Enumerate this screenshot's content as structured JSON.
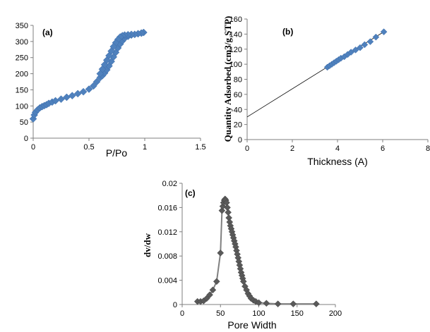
{
  "colors": {
    "blue_marker": "#4f81bd",
    "gray_marker": "#595959",
    "axis": "#7f7f7f",
    "fit_line": "#000000"
  },
  "chart_data": [
    {
      "type": "scatter",
      "panel_label": "(a)",
      "xlabel": "P/Po",
      "ylabel": "",
      "xlim": [
        0,
        1.5
      ],
      "ylim": [
        0,
        350
      ],
      "xticks": [
        "0",
        "0.5",
        "1",
        "1.5"
      ],
      "yticks": [
        "0",
        "50",
        "100",
        "150",
        "200",
        "250",
        "300",
        "350"
      ],
      "series": [
        {
          "marker": "diamond",
          "x": [
            0.0,
            0.01,
            0.02,
            0.04,
            0.06,
            0.08,
            0.1,
            0.12,
            0.14,
            0.17,
            0.2,
            0.25,
            0.3,
            0.35,
            0.4,
            0.45,
            0.5,
            0.54,
            0.57,
            0.6,
            0.62,
            0.64,
            0.66,
            0.68,
            0.7,
            0.72,
            0.74,
            0.76,
            0.78,
            0.8,
            0.82,
            0.85,
            0.88,
            0.91,
            0.94,
            0.97,
            0.99,
            0.97,
            0.94,
            0.91,
            0.88,
            0.85,
            0.82,
            0.8,
            0.78,
            0.76,
            0.74,
            0.72,
            0.7,
            0.68,
            0.66,
            0.64,
            0.62,
            0.6
          ],
          "y": [
            60,
            72,
            80,
            88,
            94,
            98,
            101,
            104,
            108,
            112,
            116,
            121,
            127,
            132,
            138,
            144,
            152,
            162,
            175,
            188,
            194,
            202,
            212,
            224,
            238,
            252,
            266,
            280,
            292,
            302,
            310,
            316,
            320,
            322,
            324,
            326,
            328,
            326,
            324,
            322,
            322,
            321,
            320,
            318,
            314,
            306,
            296,
            284,
            270,
            256,
            242,
            228,
            214,
            200
          ]
        }
      ]
    },
    {
      "type": "scatter",
      "panel_label": "(b)",
      "xlabel": "Thickness (A)",
      "ylabel": "Quantity Adsorbed (cm3/g STP)",
      "xlim": [
        0,
        8
      ],
      "ylim": [
        0,
        160
      ],
      "xticks": [
        "0",
        "2",
        "4",
        "6",
        "8"
      ],
      "yticks": [
        "0",
        "20",
        "40",
        "60",
        "80",
        "100",
        "120",
        "140",
        "160"
      ],
      "fit_line": {
        "x": [
          0,
          6.1
        ],
        "y": [
          30,
          144
        ]
      },
      "series": [
        {
          "marker": "diamond",
          "x": [
            3.55,
            3.65,
            3.75,
            3.85,
            3.95,
            4.05,
            4.15,
            4.3,
            4.45,
            4.6,
            4.8,
            5.0,
            5.2,
            5.45,
            5.7,
            6.05
          ],
          "y": [
            96,
            98,
            100,
            102,
            104,
            106,
            108,
            110,
            113,
            116,
            119,
            122,
            126,
            130,
            136,
            143
          ]
        }
      ]
    },
    {
      "type": "line",
      "panel_label": "(c)",
      "xlabel": "Pore Width",
      "ylabel": "dv/dw",
      "xlim": [
        0,
        200
      ],
      "ylim": [
        0,
        0.02
      ],
      "xticks": [
        "0",
        "50",
        "100",
        "150",
        "200"
      ],
      "yticks": [
        "0",
        "0.004",
        "0.008",
        "0.012",
        "0.016",
        "0.02"
      ],
      "series": [
        {
          "marker": "diamond",
          "x": [
            20,
            24,
            28,
            32,
            36,
            40,
            45,
            50,
            52,
            53,
            54,
            55,
            56,
            57,
            58,
            59,
            60,
            61,
            62,
            63,
            64,
            65,
            66,
            67,
            68,
            69,
            70,
            71,
            72,
            73,
            74,
            75,
            76,
            77,
            78,
            79,
            80,
            82,
            84,
            86,
            88,
            90,
            93,
            96,
            100,
            110,
            125,
            145,
            175
          ],
          "y": [
            0.0005,
            0.0005,
            0.0006,
            0.001,
            0.0016,
            0.0024,
            0.0038,
            0.0085,
            0.0155,
            0.0162,
            0.0168,
            0.0172,
            0.0174,
            0.0172,
            0.0168,
            0.016,
            0.0152,
            0.0143,
            0.0136,
            0.013,
            0.0125,
            0.012,
            0.0115,
            0.011,
            0.0105,
            0.01,
            0.0095,
            0.0089,
            0.0083,
            0.0077,
            0.0071,
            0.0065,
            0.0059,
            0.0053,
            0.0048,
            0.0043,
            0.0038,
            0.003,
            0.0024,
            0.0018,
            0.0014,
            0.001,
            0.0007,
            0.0005,
            0.0003,
            0.0002,
            0.0001,
            0.0001,
            0.0001
          ]
        }
      ]
    }
  ]
}
